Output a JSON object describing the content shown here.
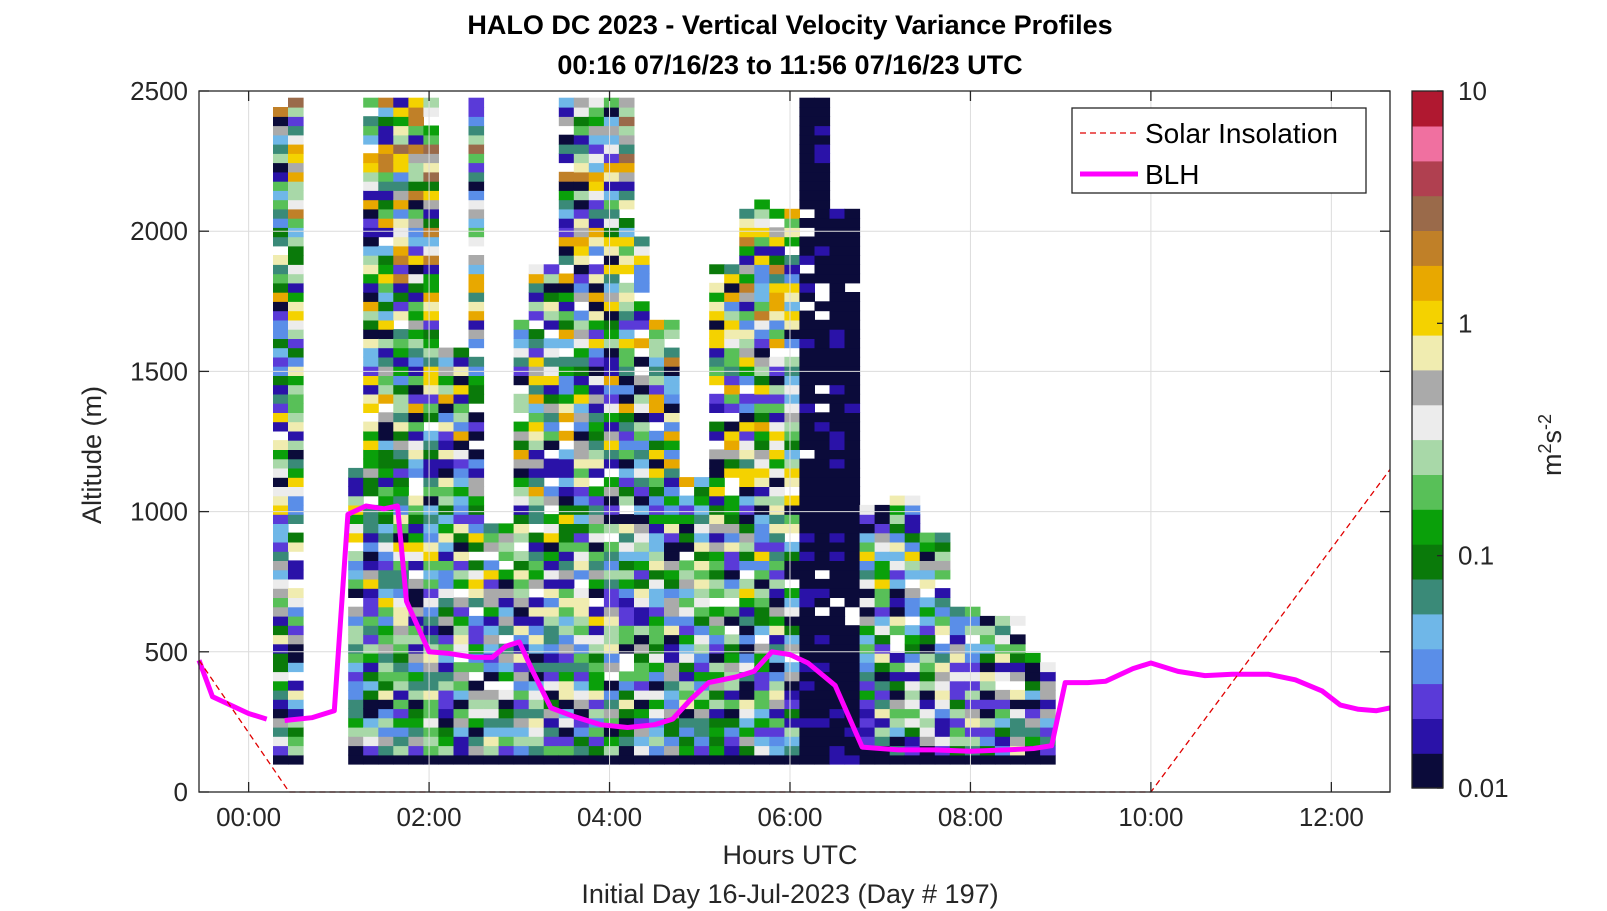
{
  "chart_data": {
    "type": "heatmap",
    "title": "HALO DC 2023 - Vertical Velocity Variance Profiles",
    "subtitle": "00:16 07/16/23 to 11:56 07/16/23  UTC",
    "xlabel": "Hours UTC",
    "ylabel": "Altitude (m)",
    "footer": "Initial Day 16-Jul-2023 (Day # 197)",
    "xlim": [
      -0.55,
      12.65
    ],
    "ylim": [
      0,
      2500
    ],
    "x_ticks": [
      0,
      2,
      4,
      6,
      8,
      10,
      12
    ],
    "x_tick_labels": [
      "00:00",
      "02:00",
      "04:00",
      "06:00",
      "08:00",
      "10:00",
      "12:00"
    ],
    "y_ticks": [
      0,
      500,
      1000,
      1500,
      2000,
      2500
    ],
    "y_tick_labels": [
      "0",
      "500",
      "1000",
      "1500",
      "2000",
      "2500"
    ],
    "grid": true,
    "colorbar": {
      "scale": "log",
      "min": 0.01,
      "max": 10,
      "ticks": [
        0.01,
        0.1,
        1,
        10
      ],
      "tick_labels": [
        "0.01",
        "0.1",
        "1",
        "10"
      ],
      "label_base": "m",
      "label_exp1": "2",
      "label_mid": "s",
      "label_exp2": "-2",
      "colors": [
        "#0b0b3a",
        "#2a12a8",
        "#5a3ad8",
        "#5a8ee8",
        "#6fb7e8",
        "#3a8a78",
        "#0a7a0a",
        "#0aa00a",
        "#58c058",
        "#a8d8a8",
        "#ececec",
        "#aaaaaa",
        "#f0ecb0",
        "#f4d200",
        "#e8a800",
        "#c08028",
        "#9a6a4a",
        "#b04050",
        "#f070a0",
        "#b01830"
      ]
    },
    "legend": {
      "position": "top-right",
      "entries": [
        {
          "label": "Solar Insolation",
          "style": "dashed",
          "color": "#e00000"
        },
        {
          "label": "BLH",
          "style": "solid",
          "color": "#ff00ff"
        }
      ]
    },
    "heatmap": {
      "x_start": 0.27,
      "x_step": 0.1667,
      "n_columns": 70,
      "y_start": 100,
      "y_step": 33,
      "top_profile_m": [
        2450,
        2450,
        0,
        0,
        0,
        1135,
        2450,
        2450,
        2450,
        2450,
        2450,
        1580,
        1580,
        2450,
        930,
        930,
        1670,
        1870,
        1870,
        2450,
        2450,
        2450,
        2450,
        2450,
        1950,
        1670,
        1670,
        1100,
        1100,
        1850,
        1850,
        2100,
        2100,
        2050,
        2050,
        2450,
        2450,
        2050,
        2050,
        1000,
        1000,
        1040,
        1040,
        900,
        900,
        650,
        650,
        600,
        600,
        600,
        480,
        450,
        0,
        0,
        0,
        0,
        0,
        0,
        0,
        0,
        0,
        0,
        0,
        0,
        0,
        0,
        0,
        0,
        0,
        0
      ],
      "note_columns": "approximate column-top altitudes (m) of valid data"
    },
    "series": [
      {
        "name": "BLH",
        "x": [
          -0.55,
          -0.4,
          -0.2,
          0.0,
          0.2,
          0.4,
          0.7,
          0.95,
          1.1,
          1.3,
          1.5,
          1.65,
          1.75,
          2.0,
          2.2,
          2.5,
          2.7,
          2.85,
          3.0,
          3.15,
          3.35,
          3.6,
          3.9,
          4.2,
          4.5,
          4.7,
          4.9,
          5.1,
          5.4,
          5.6,
          5.8,
          6.0,
          6.2,
          6.5,
          6.8,
          7.2,
          7.6,
          8.0,
          8.4,
          8.7,
          8.9,
          9.05,
          9.3,
          9.5,
          9.8,
          10.0,
          10.3,
          10.6,
          10.9,
          11.3,
          11.6,
          11.9,
          12.1,
          12.3,
          12.5,
          12.65
        ],
        "y": [
          470,
          340,
          310,
          280,
          260,
          255,
          265,
          290,
          990,
          1020,
          1010,
          1020,
          680,
          500,
          495,
          480,
          480,
          520,
          535,
          430,
          300,
          270,
          240,
          230,
          240,
          260,
          330,
          390,
          410,
          430,
          500,
          490,
          460,
          380,
          160,
          150,
          150,
          145,
          150,
          155,
          165,
          390,
          390,
          395,
          440,
          460,
          430,
          415,
          420,
          420,
          400,
          360,
          310,
          295,
          290,
          300
        ],
        "gaps_after_x": [
          0.2
        ]
      },
      {
        "name": "Solar Insolation",
        "x": [
          -0.55,
          0.45,
          10.0,
          12.65
        ],
        "y": [
          470,
          0,
          0,
          1150
        ]
      }
    ]
  }
}
